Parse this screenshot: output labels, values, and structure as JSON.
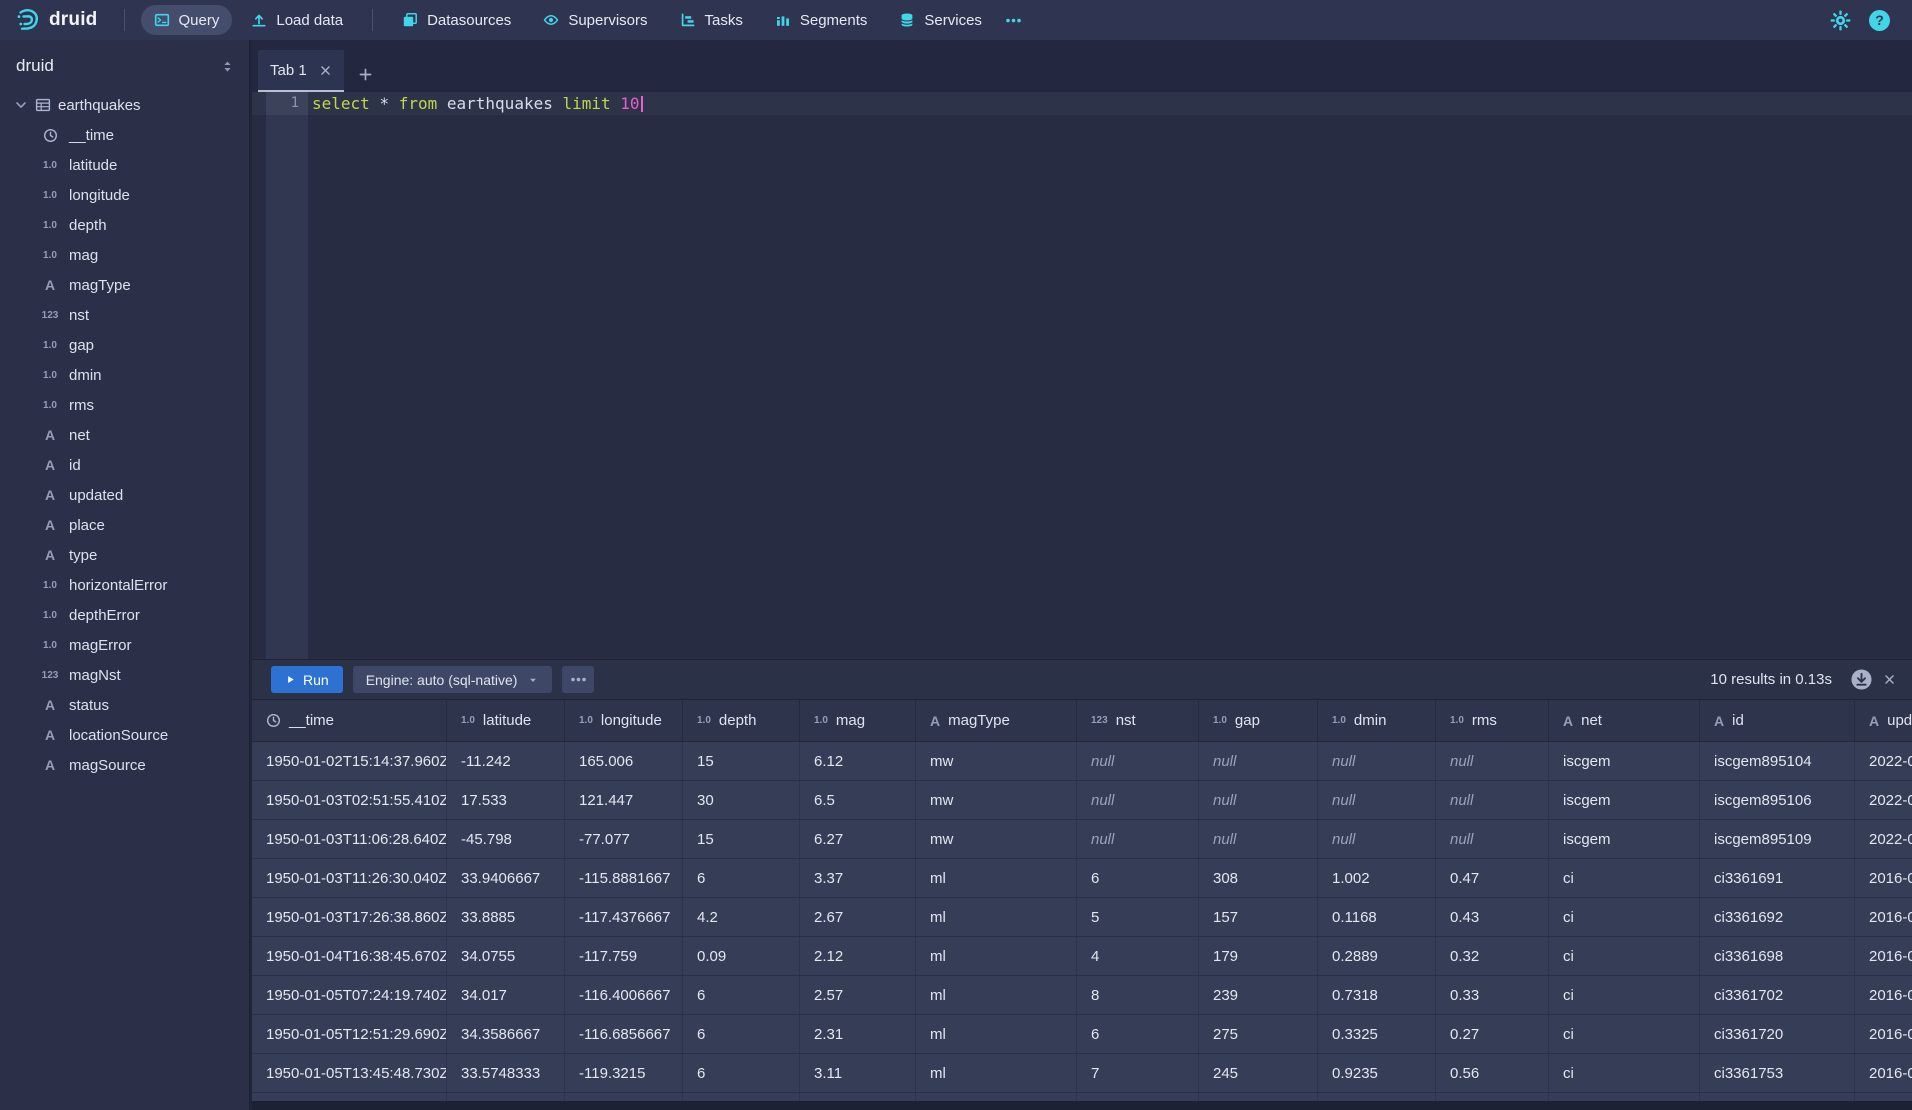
{
  "navbar": {
    "logo_text": "druid",
    "primary_items": [
      {
        "label": "Query",
        "icon": "query",
        "active": true
      },
      {
        "label": "Load data",
        "icon": "load-data",
        "active": false
      }
    ],
    "secondary_items": [
      {
        "label": "Datasources",
        "icon": "datasources",
        "active": false
      },
      {
        "label": "Supervisors",
        "icon": "supervisors",
        "active": false
      },
      {
        "label": "Tasks",
        "icon": "tasks",
        "active": false
      },
      {
        "label": "Segments",
        "icon": "segments",
        "active": false
      },
      {
        "label": "Services",
        "icon": "services",
        "active": false
      }
    ],
    "help_glyph": "?"
  },
  "sidebar": {
    "schema": "druid",
    "table": "earthquakes",
    "columns": [
      {
        "name": "__time",
        "type": "time"
      },
      {
        "name": "latitude",
        "type": "float"
      },
      {
        "name": "longitude",
        "type": "float"
      },
      {
        "name": "depth",
        "type": "float"
      },
      {
        "name": "mag",
        "type": "float"
      },
      {
        "name": "magType",
        "type": "string"
      },
      {
        "name": "nst",
        "type": "int"
      },
      {
        "name": "gap",
        "type": "float"
      },
      {
        "name": "dmin",
        "type": "float"
      },
      {
        "name": "rms",
        "type": "float"
      },
      {
        "name": "net",
        "type": "string"
      },
      {
        "name": "id",
        "type": "string"
      },
      {
        "name": "updated",
        "type": "string"
      },
      {
        "name": "place",
        "type": "string"
      },
      {
        "name": "type",
        "type": "string"
      },
      {
        "name": "horizontalError",
        "type": "float"
      },
      {
        "name": "depthError",
        "type": "float"
      },
      {
        "name": "magError",
        "type": "float"
      },
      {
        "name": "magNst",
        "type": "int"
      },
      {
        "name": "status",
        "type": "string"
      },
      {
        "name": "locationSource",
        "type": "string"
      },
      {
        "name": "magSource",
        "type": "string"
      }
    ]
  },
  "tabs": {
    "active_label": "Tab 1"
  },
  "editor": {
    "line_number": "1",
    "sql_text": "select * from earthquakes limit 10",
    "tokens": [
      {
        "text": "select",
        "type": "keyword"
      },
      {
        "text": " ",
        "type": "plain"
      },
      {
        "text": "*",
        "type": "plain"
      },
      {
        "text": " ",
        "type": "plain"
      },
      {
        "text": "from",
        "type": "keyword"
      },
      {
        "text": " earthquakes ",
        "type": "plain"
      },
      {
        "text": "limit",
        "type": "keyword"
      },
      {
        "text": " ",
        "type": "plain"
      },
      {
        "text": "10",
        "type": "number"
      }
    ]
  },
  "runbar": {
    "run_label": "Run",
    "engine_label": "Engine: auto (sql-native)",
    "results_summary": "10 results in 0.13s"
  },
  "results": {
    "columns": [
      {
        "label": "__time",
        "type": "time"
      },
      {
        "label": "latitude",
        "type": "float"
      },
      {
        "label": "longitude",
        "type": "float"
      },
      {
        "label": "depth",
        "type": "float"
      },
      {
        "label": "mag",
        "type": "float"
      },
      {
        "label": "magType",
        "type": "string"
      },
      {
        "label": "nst",
        "type": "int"
      },
      {
        "label": "gap",
        "type": "float"
      },
      {
        "label": "dmin",
        "type": "float"
      },
      {
        "label": "rms",
        "type": "float"
      },
      {
        "label": "net",
        "type": "string"
      },
      {
        "label": "id",
        "type": "string"
      },
      {
        "label": "upd",
        "type": "string"
      }
    ],
    "rows": [
      [
        "1950-01-02T15:14:37.960Z",
        "-11.242",
        "165.006",
        "15",
        "6.12",
        "mw",
        "null",
        "null",
        "null",
        "null",
        "iscgem",
        "iscgem895104",
        "2022-0"
      ],
      [
        "1950-01-03T02:51:55.410Z",
        "17.533",
        "121.447",
        "30",
        "6.5",
        "mw",
        "null",
        "null",
        "null",
        "null",
        "iscgem",
        "iscgem895106",
        "2022-0"
      ],
      [
        "1950-01-03T11:06:28.640Z",
        "-45.798",
        "-77.077",
        "15",
        "6.27",
        "mw",
        "null",
        "null",
        "null",
        "null",
        "iscgem",
        "iscgem895109",
        "2022-0"
      ],
      [
        "1950-01-03T11:26:30.040Z",
        "33.9406667",
        "-115.8881667",
        "6",
        "3.37",
        "ml",
        "6",
        "308",
        "1.002",
        "0.47",
        "ci",
        "ci3361691",
        "2016-0"
      ],
      [
        "1950-01-03T17:26:38.860Z",
        "33.8885",
        "-117.4376667",
        "4.2",
        "2.67",
        "ml",
        "5",
        "157",
        "0.1168",
        "0.43",
        "ci",
        "ci3361692",
        "2016-0"
      ],
      [
        "1950-01-04T16:38:45.670Z",
        "34.0755",
        "-117.759",
        "0.09",
        "2.12",
        "ml",
        "4",
        "179",
        "0.2889",
        "0.32",
        "ci",
        "ci3361698",
        "2016-0"
      ],
      [
        "1950-01-05T07:24:19.740Z",
        "34.017",
        "-116.4006667",
        "6",
        "2.57",
        "ml",
        "8",
        "239",
        "0.7318",
        "0.33",
        "ci",
        "ci3361702",
        "2016-0"
      ],
      [
        "1950-01-05T12:51:29.690Z",
        "34.3586667",
        "-116.6856667",
        "6",
        "2.31",
        "ml",
        "6",
        "275",
        "0.3325",
        "0.27",
        "ci",
        "ci3361720",
        "2016-0"
      ],
      [
        "1950-01-05T13:45:48.730Z",
        "33.5748333",
        "-119.3215",
        "6",
        "3.11",
        "ml",
        "7",
        "245",
        "0.9235",
        "0.56",
        "ci",
        "ci3361753",
        "2016-0"
      ]
    ]
  },
  "colors": {
    "accent_cyan": "#3fd6e8",
    "run_button_blue": "#2d72d2",
    "sql_keyword": "#c3d64b",
    "sql_number": "#e85fc8",
    "row_background": "#363d57",
    "navbar_background": "#2f3450"
  }
}
